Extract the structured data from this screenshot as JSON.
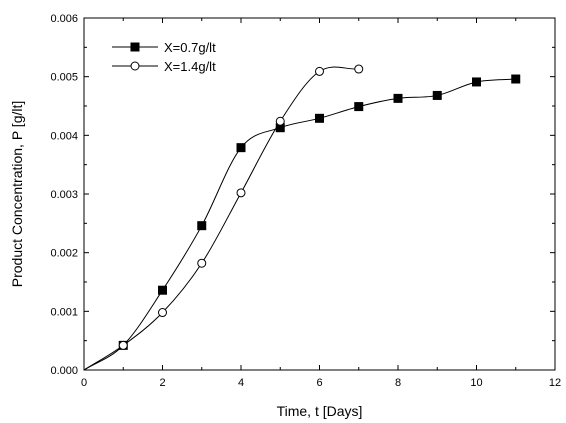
{
  "chart_data": {
    "type": "line",
    "title": "",
    "xlabel": "Time, t [Days]",
    "ylabel": "Product Concentration, P [g/lt]",
    "xlim": [
      0,
      12
    ],
    "ylim": [
      0,
      0.006
    ],
    "x_ticks": [
      0,
      2,
      4,
      6,
      8,
      10,
      12
    ],
    "y_ticks": [
      0.0,
      0.001,
      0.002,
      0.003,
      0.004,
      0.005,
      0.006
    ],
    "x_tick_labels": [
      "0",
      "2",
      "4",
      "6",
      "8",
      "10",
      "12"
    ],
    "y_tick_labels": [
      "0.000",
      "0.001",
      "0.002",
      "0.003",
      "0.004",
      "0.005",
      "0.006"
    ],
    "grid": false,
    "legend_position": "top-left",
    "series": [
      {
        "name": "X=0.7g/lt",
        "marker": "filled-square",
        "color": "#000000",
        "x": [
          0,
          1,
          2,
          3,
          4,
          5,
          6,
          7,
          8,
          9,
          10,
          11
        ],
        "y": [
          0.0,
          0.00042,
          0.00136,
          0.00246,
          0.00379,
          0.00413,
          0.00429,
          0.00449,
          0.00463,
          0.00468,
          0.00491,
          0.00496
        ]
      },
      {
        "name": "X=1.4g/lt",
        "marker": "open-circle",
        "color": "#000000",
        "x": [
          0,
          1,
          2,
          3,
          4,
          5,
          6,
          7
        ],
        "y": [
          0.0,
          0.00042,
          0.00098,
          0.00182,
          0.00302,
          0.00424,
          0.00509,
          0.00513
        ]
      }
    ]
  }
}
